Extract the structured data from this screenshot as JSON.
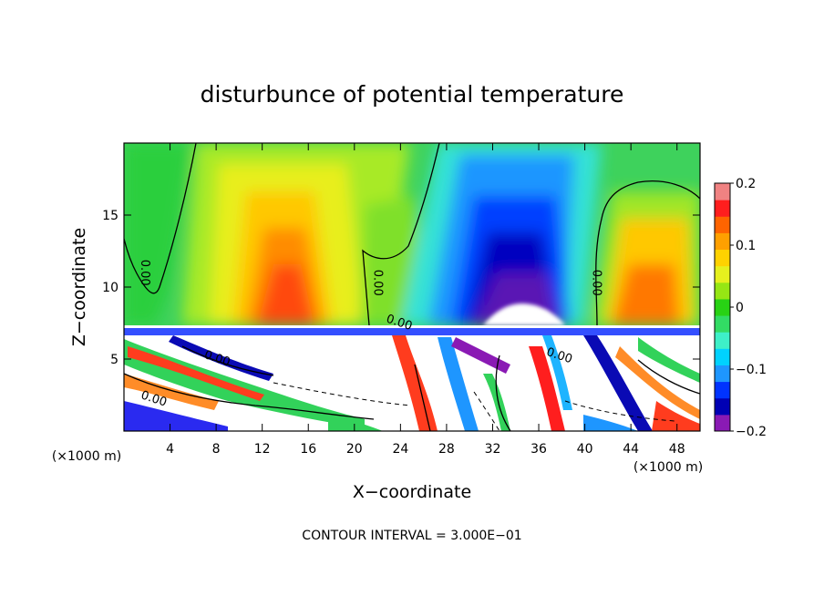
{
  "chart_data": {
    "type": "heatmap",
    "title": "disturbunce of potential temperature",
    "xlabel": "X−coordinate",
    "ylabel": "Z−coordinate",
    "x_unit_left": "(×1000 m)",
    "x_unit_right": "(×1000 m)",
    "footer": "CONTOUR INTERVAL = 3.000E−01",
    "xlim": [
      0,
      50
    ],
    "ylim": [
      0,
      20
    ],
    "x_ticks": [
      {
        "value": 4,
        "label": "4"
      },
      {
        "value": 8,
        "label": "8"
      },
      {
        "value": 12,
        "label": "12"
      },
      {
        "value": 16,
        "label": "16"
      },
      {
        "value": 20,
        "label": "20"
      },
      {
        "value": 24,
        "label": "24"
      },
      {
        "value": 28,
        "label": "28"
      },
      {
        "value": 32,
        "label": "32"
      },
      {
        "value": 36,
        "label": "36"
      },
      {
        "value": 40,
        "label": "40"
      },
      {
        "value": 44,
        "label": "44"
      },
      {
        "value": 48,
        "label": "48"
      }
    ],
    "y_ticks": [
      {
        "value": 5,
        "label": "5"
      },
      {
        "value": 10,
        "label": "10"
      },
      {
        "value": 15,
        "label": "15"
      }
    ],
    "colorbar": {
      "range": [
        -0.2,
        0.2
      ],
      "ticks": [
        {
          "value": 0.2,
          "label": "0.2"
        },
        {
          "value": 0.1,
          "label": "0.1"
        },
        {
          "value": 0,
          "label": "0"
        },
        {
          "value": -0.1,
          "label": "−0.1"
        },
        {
          "value": -0.2,
          "label": "−0.2"
        }
      ],
      "colors": [
        "#8a1ab4",
        "#0000b4",
        "#0033ff",
        "#1e96ff",
        "#00d2ff",
        "#3ef0c8",
        "#32dc64",
        "#28d214",
        "#96e614",
        "#e6f01e",
        "#ffd200",
        "#ffa000",
        "#ff6400",
        "#ff1e1e",
        "#f08282"
      ]
    },
    "contour_labels": [
      {
        "x": 1.5,
        "y": 11.0,
        "label": "0.00"
      },
      {
        "x": 21.7,
        "y": 10.3,
        "label": "0.00"
      },
      {
        "x": 40.7,
        "y": 10.3,
        "label": "0.00"
      },
      {
        "x": 8.0,
        "y": 4.8,
        "label": "0.00"
      },
      {
        "x": 2.5,
        "y": 2.0,
        "label": "0.00"
      },
      {
        "x": 37.7,
        "y": 5.0,
        "label": "0.00"
      },
      {
        "x": 23.8,
        "y": 7.3,
        "label": "0.00"
      }
    ]
  }
}
